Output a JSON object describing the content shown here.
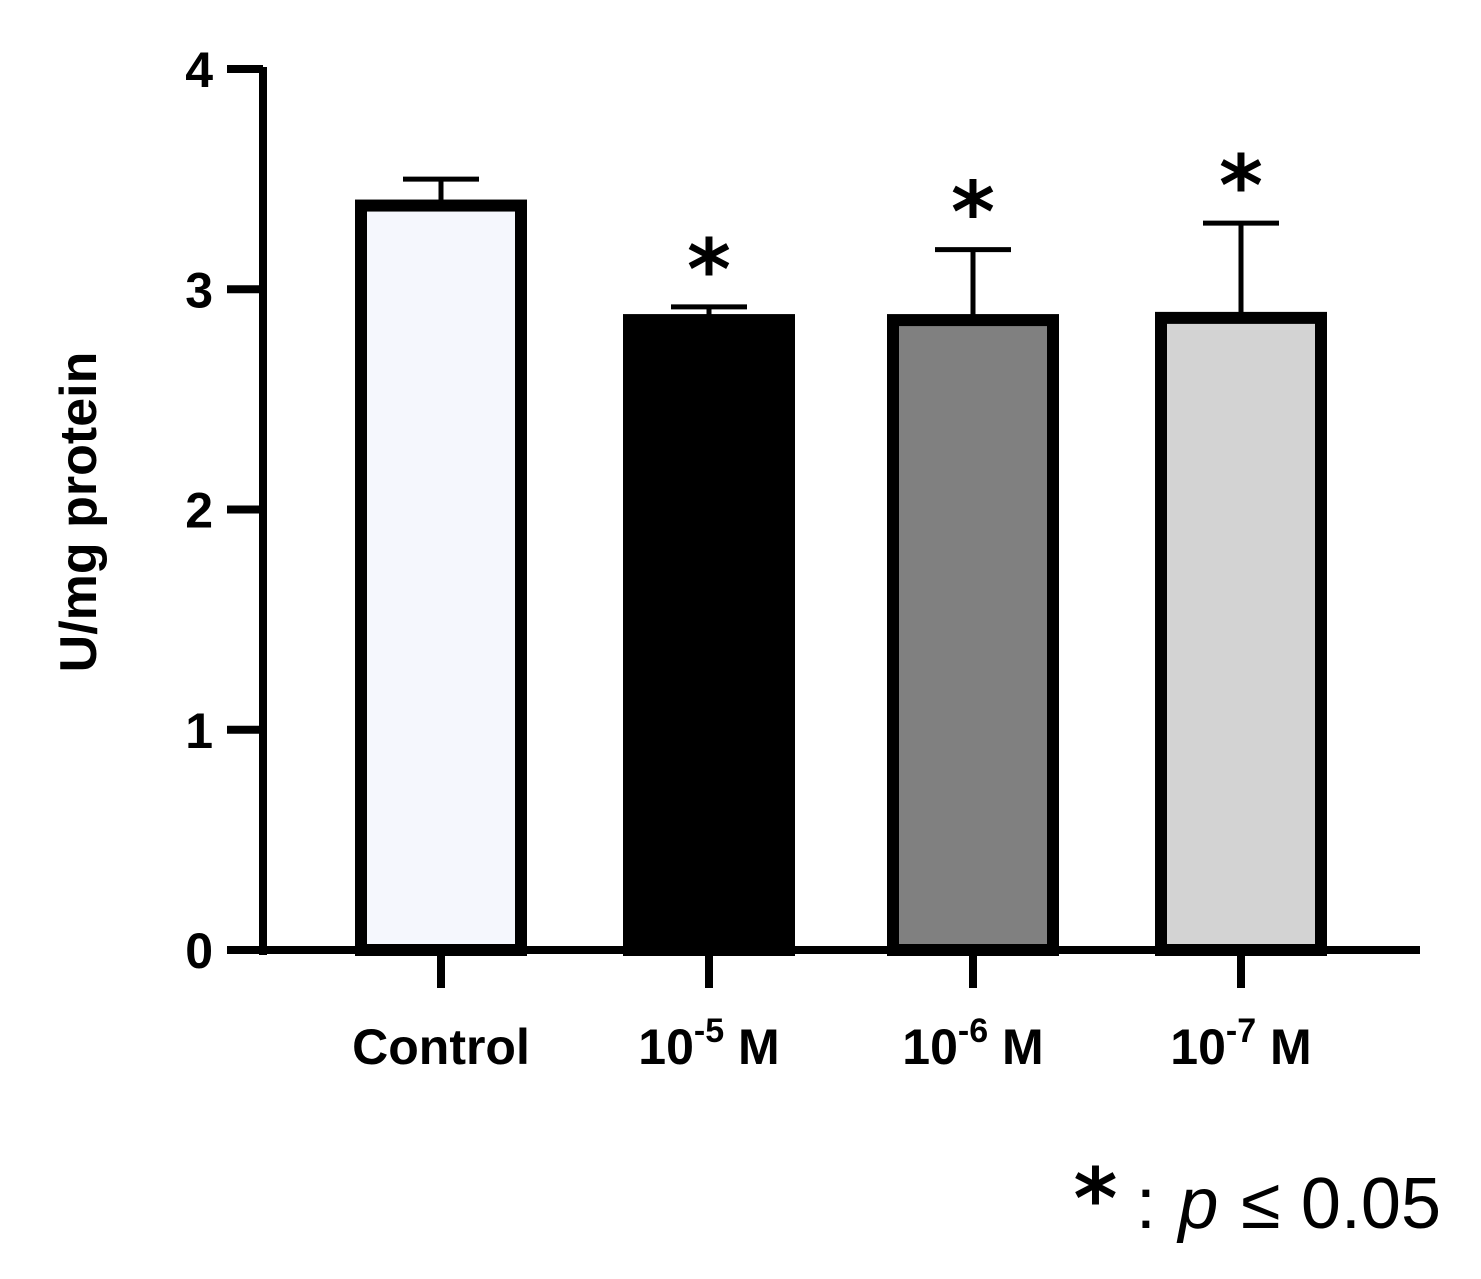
{
  "chart_data": {
    "type": "bar",
    "title": "",
    "xlabel": "",
    "ylabel": "U/mg protein",
    "ylim": [
      0,
      4
    ],
    "yticks": [
      "0",
      "1",
      "2",
      "3",
      "4"
    ],
    "grid": false,
    "legend": "none",
    "categories": [
      {
        "base": "Control",
        "sup": "",
        "unit": ""
      },
      {
        "base": "10",
        "sup": "-5",
        "unit": " M"
      },
      {
        "base": "10",
        "sup": "-6",
        "unit": " M"
      },
      {
        "base": "10",
        "sup": "-7",
        "unit": " M"
      }
    ],
    "values": [
      3.38,
      2.86,
      2.86,
      2.87
    ],
    "errors": [
      0.12,
      0.06,
      0.32,
      0.43
    ],
    "bar_colors": [
      "#f5f7fd",
      "#000000",
      "#808080",
      "#d3d3d3"
    ],
    "significance": [
      "",
      "*",
      "*",
      "*"
    ],
    "annotation": {
      "symbol": "*",
      "separator": ":",
      "variable": "p",
      "operator": "≤",
      "threshold": "0.05"
    }
  }
}
